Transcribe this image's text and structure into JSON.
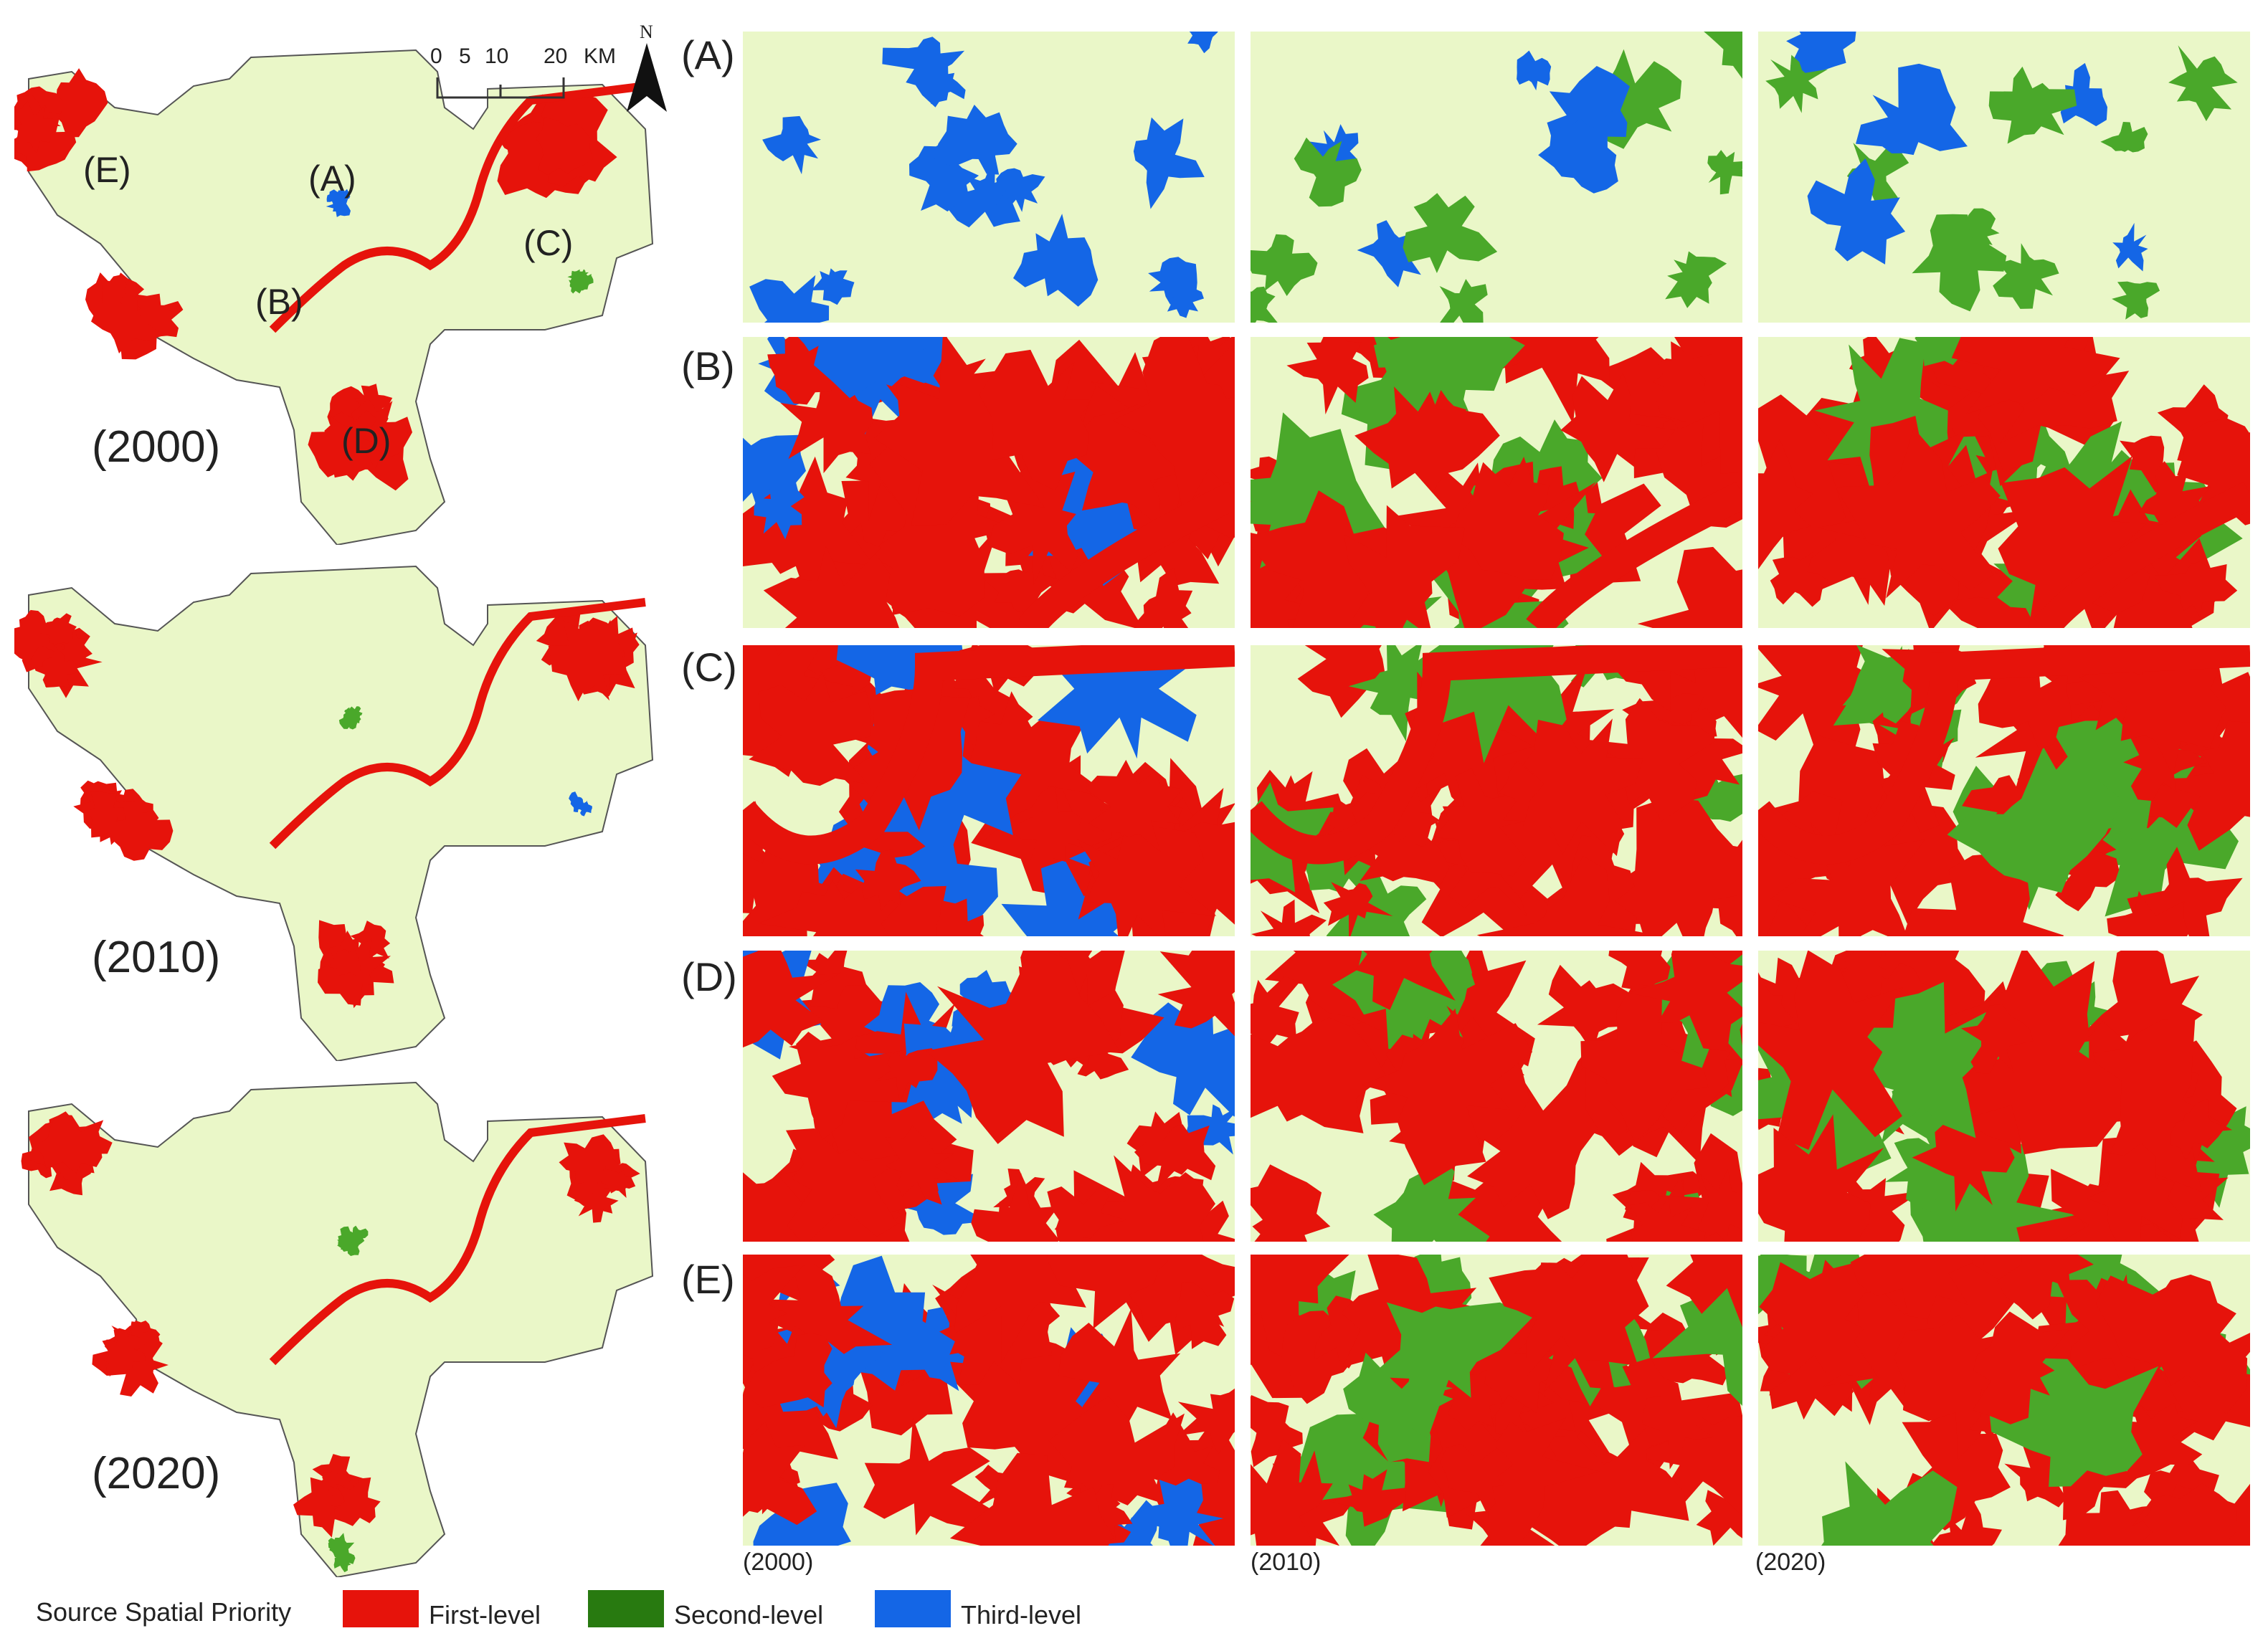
{
  "colors": {
    "background": "#eaf7c8",
    "first_level": "#e6130b",
    "second_level": "#4aa82a",
    "second_level_legend": "#287a10",
    "third_level": "#1466e6",
    "outline": "#555555"
  },
  "overview": {
    "years": [
      "(2000)",
      "(2010)",
      "(2020)"
    ],
    "region_labels": [
      "(A)",
      "(B)",
      "(C)",
      "(D)",
      "(E)"
    ],
    "scale_bar": {
      "ticks": [
        "0",
        "5",
        "10",
        "20"
      ],
      "unit": "KM"
    },
    "north_arrow": {
      "letter": "N",
      "icon": "north-arrow-icon"
    }
  },
  "detail": {
    "rows": [
      "(A)",
      "(B)",
      "(C)",
      "(D)",
      "(E)"
    ],
    "columns": [
      "(2000)",
      "(2010)",
      "(2020)"
    ]
  },
  "legend": {
    "title": "Source Spatial Priority",
    "items": [
      "First-level",
      "Second-level",
      "Third-level"
    ]
  }
}
